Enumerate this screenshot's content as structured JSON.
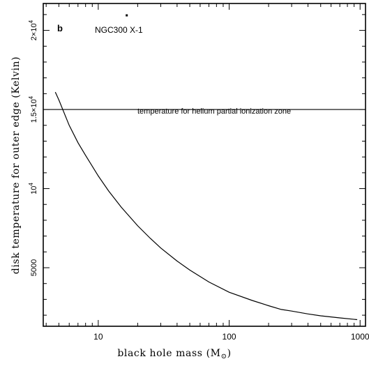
{
  "chart_data": {
    "type": "line",
    "panel_label": "b",
    "annotation": "NGC300 X-1",
    "xlabel_main": "black hole mass (M",
    "xlabel_sub": "⊙",
    "xlabel_close": ")",
    "ylabel": "disk temperature for outer edge (Kelvin)",
    "xscale": "log",
    "xlim": [
      3.8,
      1100
    ],
    "ylim": [
      1300,
      21700
    ],
    "x_ticks": [
      {
        "value": 10,
        "label": "10"
      },
      {
        "value": 100,
        "label": "100"
      },
      {
        "value": 1000,
        "label": "1000"
      }
    ],
    "y_ticks": [
      {
        "value": 5000,
        "base": "5000",
        "exp": ""
      },
      {
        "value": 10000,
        "base": "10",
        "exp": "4"
      },
      {
        "value": 15000,
        "base": "1.5×10",
        "exp": "4"
      },
      {
        "value": 20000,
        "base": "2×10",
        "exp": "4"
      }
    ],
    "reference_line": {
      "y": 15000,
      "label": "temperature for helium partial ionization zone"
    },
    "marker": {
      "x": 16.5,
      "y": 20950
    },
    "series": [
      {
        "x": [
          4.7,
          5,
          6,
          7,
          8,
          10,
          12,
          15,
          20,
          25,
          30,
          40,
          50,
          70,
          100,
          150,
          200,
          250,
          300,
          400,
          500,
          700,
          950
        ],
        "values": [
          16100,
          15600,
          14000,
          12900,
          12100,
          10800,
          9850,
          8820,
          7650,
          6850,
          6250,
          5420,
          4850,
          4100,
          3450,
          2930,
          2600,
          2360,
          2260,
          2080,
          1960,
          1830,
          1720
        ]
      }
    ]
  }
}
